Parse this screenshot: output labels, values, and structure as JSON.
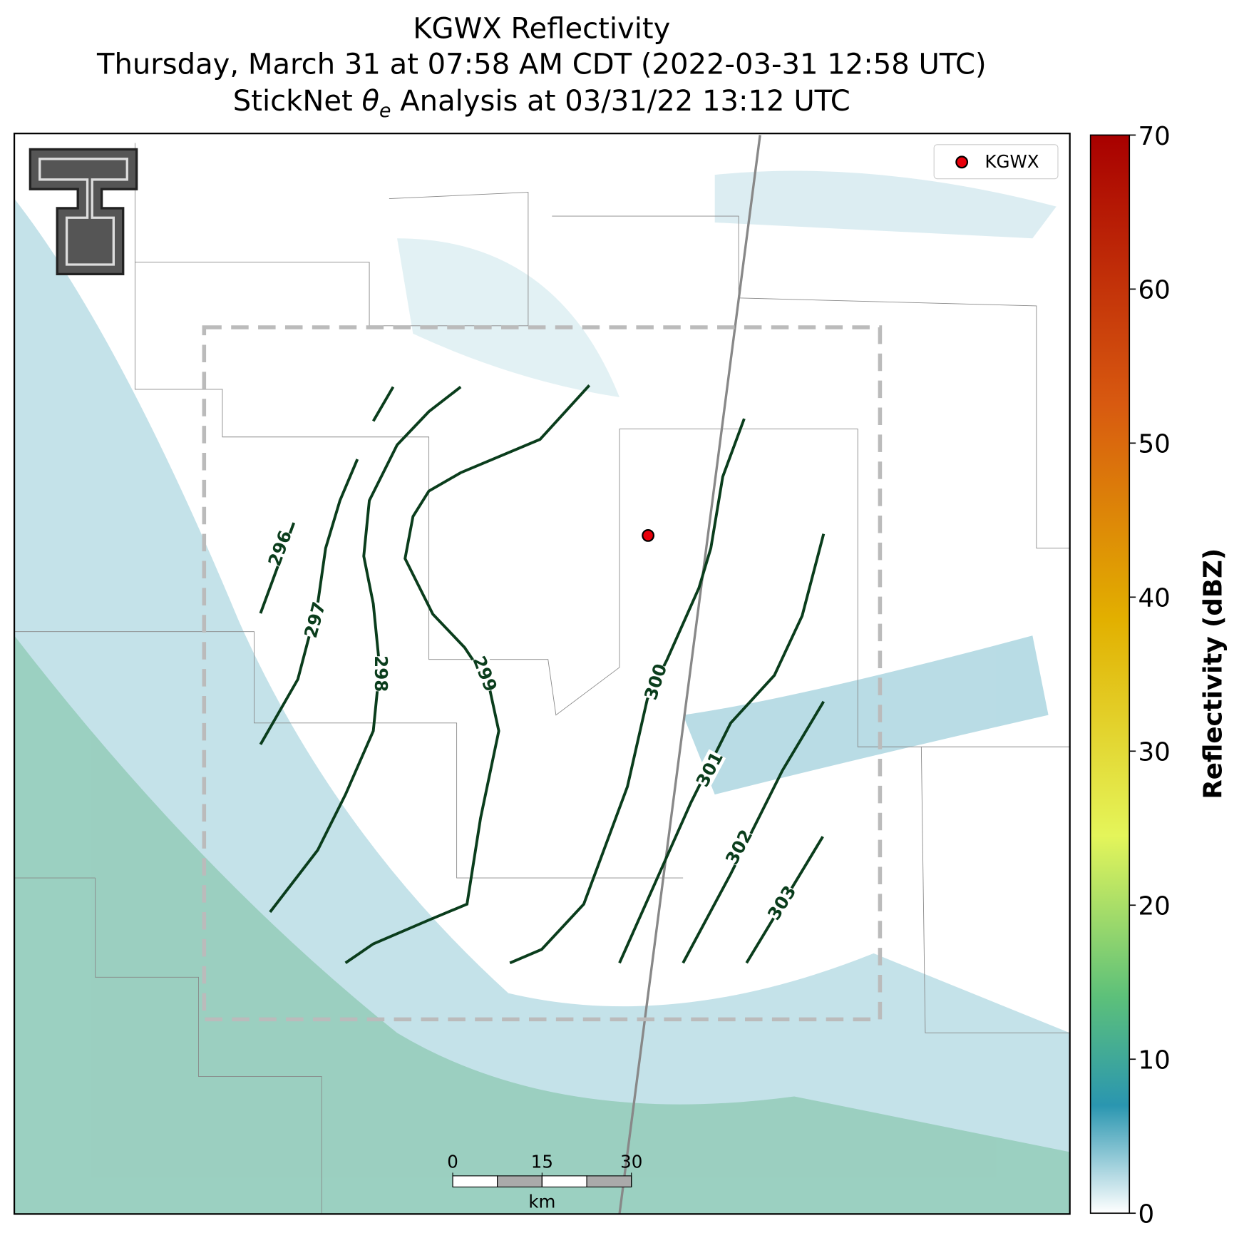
{
  "title": {
    "line1": "KGWX Reflectivity",
    "line2": "Thursday, March 31 at 07:58 AM CDT (2022-03-31 12:58 UTC)",
    "line3": {
      "prefix": "StickNet",
      "symbol": "θ",
      "subscript": "e",
      "suffix": "Analysis at 03/31/22 13:12 UTC"
    }
  },
  "legend": {
    "label": "KGWX",
    "color": "#e8000b"
  },
  "contours": {
    "color": "#0a3d1c",
    "levels": [
      296,
      297,
      298,
      299,
      300,
      301,
      302,
      303
    ]
  },
  "colorbar": {
    "label": "Reflectivity (dBZ)",
    "lim": [
      0,
      70
    ],
    "ticks": [
      0,
      10,
      20,
      30,
      40,
      50,
      60,
      70
    ]
  },
  "scale_bar": {
    "ticks": [
      0,
      15,
      30
    ],
    "unit": "km"
  }
}
